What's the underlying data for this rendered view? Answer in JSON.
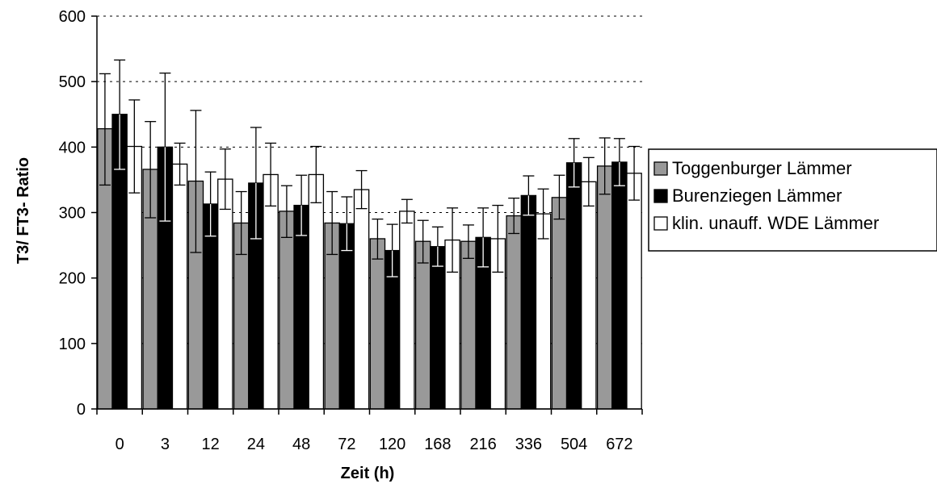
{
  "chart_data": {
    "type": "bar",
    "title": "",
    "xlabel": "Zeit (h)",
    "ylabel": "T3/ FT3- Ratio",
    "ylim": [
      0,
      600
    ],
    "yticks": [
      "0",
      "100",
      "200",
      "300",
      "400",
      "500",
      "600"
    ],
    "grid": "horizontal dashed",
    "legend_position": "right",
    "categories": [
      "0",
      "3",
      "12",
      "24",
      "48",
      "72",
      "120",
      "168",
      "216",
      "336",
      "504",
      "672"
    ],
    "series": [
      {
        "name": "Toggenburger Lämmer",
        "color": "#999999",
        "values": [
          428,
          366,
          348,
          284,
          302,
          284,
          260,
          256,
          256,
          295,
          323,
          371
        ],
        "error_upper": [
          512,
          439,
          456,
          332,
          341,
          332,
          290,
          288,
          281,
          322,
          357,
          414
        ],
        "error_lower": [
          342,
          292,
          239,
          236,
          262,
          236,
          229,
          223,
          230,
          268,
          290,
          328
        ]
      },
      {
        "name": "Burenziegen Lämmer",
        "color": "#000000",
        "values": [
          450,
          400,
          313,
          345,
          311,
          283,
          242,
          248,
          262,
          326,
          376,
          377
        ],
        "error_upper": [
          533,
          513,
          362,
          430,
          357,
          324,
          282,
          278,
          307,
          356,
          413,
          413
        ],
        "error_lower": [
          366,
          287,
          264,
          260,
          265,
          242,
          202,
          218,
          217,
          296,
          339,
          341
        ]
      },
      {
        "name": "klin. unauff. WDE Lämmer",
        "color": "#ffffff",
        "values": [
          401,
          374,
          351,
          358,
          358,
          335,
          302,
          258,
          260,
          298,
          347,
          360
        ],
        "error_upper": [
          472,
          406,
          397,
          406,
          401,
          364,
          320,
          307,
          311,
          336,
          384,
          401
        ],
        "error_lower": [
          330,
          342,
          305,
          310,
          315,
          306,
          284,
          209,
          209,
          260,
          310,
          319
        ]
      }
    ]
  }
}
